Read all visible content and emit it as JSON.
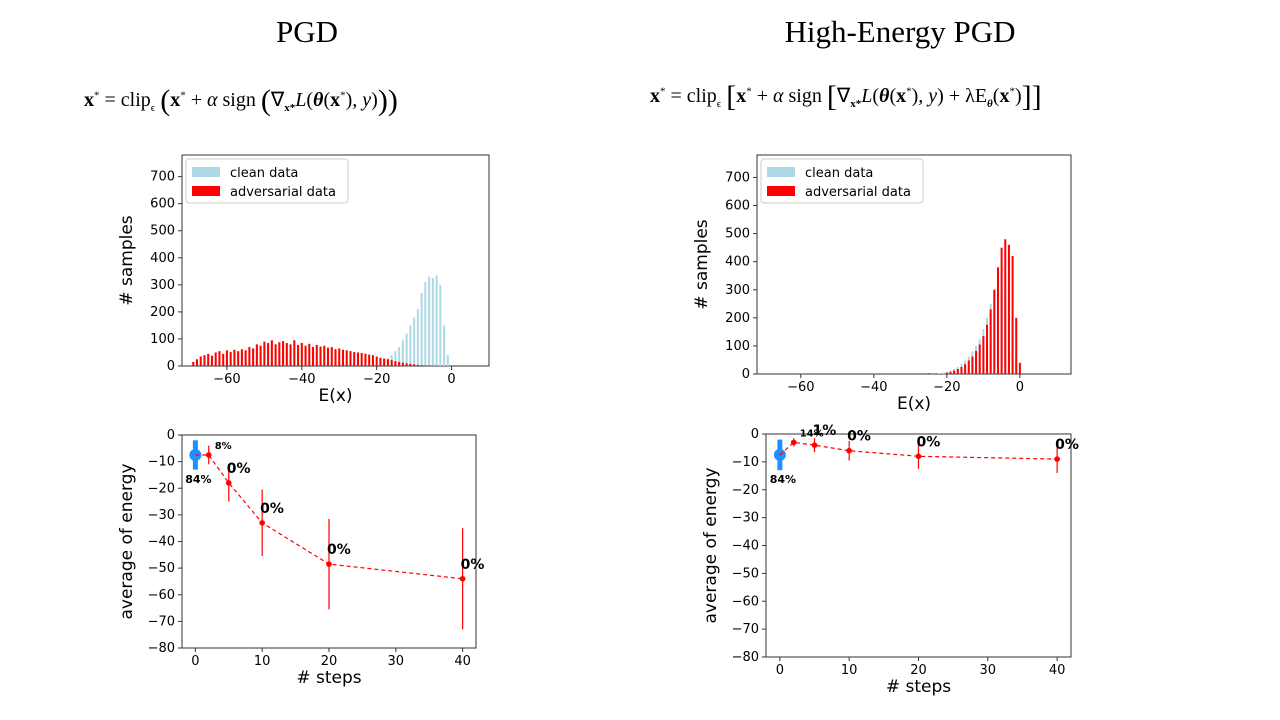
{
  "columns": [
    {
      "title": "PGD",
      "formula": "x* = clip_ϵ (x* + α sign( ∇x* L(θ(x*), y) ))"
    },
    {
      "title": "High-Energy PGD",
      "formula": "x* = clip_ϵ [x* + α sign[∇x* L(θ(x*), y) + λEθ(x*)]]"
    }
  ],
  "formula_parts": {
    "x": "x",
    "star": "*",
    "eq": " = clip",
    "eps": "ϵ",
    "plus": " + ",
    "alpha": "α",
    "sign": " sign",
    "nabla": "∇",
    "L": "L",
    "theta": "θ",
    "comma_y": ", y",
    "lambda": " + λE"
  },
  "chart_data": [
    {
      "type": "bar",
      "panel": "pgd-histogram",
      "xlabel": "E(x)",
      "ylabel": "# samples",
      "xlim": [
        -72,
        10
      ],
      "ylim": [
        0,
        780
      ],
      "xticks": [
        -60,
        -40,
        -20,
        0
      ],
      "yticks": [
        0,
        100,
        200,
        300,
        400,
        500,
        600,
        700
      ],
      "legend": "top-left",
      "series": [
        {
          "name": "clean data",
          "color": "#add8e6",
          "x": [
            -20,
            -19,
            -18,
            -17,
            -16,
            -15,
            -14,
            -13,
            -12,
            -11,
            -10,
            -9,
            -8,
            -7,
            -6,
            -5,
            -4,
            -3,
            -2,
            -1
          ],
          "values": [
            8,
            12,
            18,
            28,
            40,
            55,
            70,
            95,
            120,
            150,
            180,
            210,
            270,
            310,
            330,
            325,
            335,
            300,
            150,
            40
          ]
        },
        {
          "name": "adversarial data",
          "color": "#ff0000",
          "x": [
            -69,
            -68,
            -67,
            -66,
            -65,
            -64,
            -63,
            -62,
            -61,
            -60,
            -59,
            -58,
            -57,
            -56,
            -55,
            -54,
            -53,
            -52,
            -51,
            -50,
            -49,
            -48,
            -47,
            -46,
            -45,
            -44,
            -43,
            -42,
            -41,
            -40,
            -39,
            -38,
            -37,
            -36,
            -35,
            -34,
            -33,
            -32,
            -31,
            -30,
            -29,
            -28,
            -27,
            -26,
            -25,
            -24,
            -23,
            -22,
            -21,
            -20,
            -19,
            -18,
            -17,
            -16,
            -15,
            -14,
            -13,
            -12,
            -11,
            -10,
            -9,
            -8,
            -7,
            -6,
            -5,
            -4
          ],
          "values": [
            15,
            25,
            35,
            40,
            45,
            38,
            50,
            55,
            45,
            58,
            52,
            60,
            55,
            62,
            58,
            70,
            65,
            80,
            75,
            90,
            85,
            95,
            80,
            88,
            92,
            85,
            80,
            95,
            78,
            85,
            75,
            82,
            70,
            78,
            72,
            75,
            68,
            70,
            62,
            65,
            60,
            58,
            55,
            52,
            50,
            48,
            45,
            42,
            40,
            35,
            30,
            28,
            25,
            22,
            18,
            15,
            12,
            10,
            8,
            6,
            4,
            3,
            2,
            2,
            1,
            1
          ]
        }
      ]
    },
    {
      "type": "bar",
      "panel": "he-pgd-histogram",
      "xlabel": "E(x)",
      "ylabel": "# samples",
      "xlim": [
        -72,
        14
      ],
      "ylim": [
        0,
        780
      ],
      "xticks": [
        -60,
        -40,
        -20,
        0
      ],
      "yticks": [
        0,
        100,
        200,
        300,
        400,
        500,
        600,
        700
      ],
      "legend": "top-left",
      "series": [
        {
          "name": "clean data",
          "color": "#add8e6",
          "x": [
            -22,
            -21,
            -20,
            -19,
            -18,
            -17,
            -16,
            -15,
            -14,
            -13,
            -12,
            -11,
            -10,
            -9,
            -8,
            -7,
            -6,
            -5,
            -4,
            -3,
            -2,
            -1,
            0
          ],
          "values": [
            3,
            5,
            8,
            12,
            18,
            25,
            35,
            48,
            62,
            80,
            100,
            125,
            160,
            200,
            250,
            300,
            330,
            350,
            300,
            230,
            140,
            60,
            15
          ]
        },
        {
          "name": "adversarial data",
          "color": "#ff0000",
          "x": [
            -69,
            -60,
            -50,
            -40,
            -30,
            -25,
            -20,
            -19,
            -18,
            -17,
            -16,
            -15,
            -14,
            -13,
            -12,
            -11,
            -10,
            -9,
            -8,
            -7,
            -6,
            -5,
            -4,
            -3,
            -2,
            -1,
            0
          ],
          "values": [
            1,
            1,
            1,
            1,
            2,
            3,
            5,
            8,
            12,
            18,
            25,
            35,
            48,
            62,
            82,
            105,
            135,
            175,
            230,
            300,
            380,
            450,
            480,
            460,
            420,
            200,
            40
          ]
        }
      ]
    },
    {
      "type": "line",
      "panel": "pgd-energy",
      "xlabel": "# steps",
      "ylabel": "average of energy",
      "xlim": [
        -2,
        42
      ],
      "ylim": [
        -80,
        0
      ],
      "xticks": [
        0,
        10,
        20,
        30,
        40
      ],
      "yticks": [
        0,
        -10,
        -20,
        -30,
        -40,
        -50,
        -60,
        -70,
        -80
      ],
      "clean_point": {
        "x": 0,
        "y": -7.5,
        "err": 5.5,
        "label": "84%"
      },
      "series": [
        {
          "name": "",
          "color": "#ff0000",
          "x": [
            2,
            5,
            10,
            20,
            40
          ],
          "values": [
            -7.5,
            -18,
            -33,
            -48.5,
            -54
          ],
          "err": [
            3.5,
            7,
            12.5,
            17,
            19
          ],
          "labels": [
            "8%",
            "0%",
            "0%",
            "0%",
            "0%"
          ]
        }
      ]
    },
    {
      "type": "line",
      "panel": "he-pgd-energy",
      "xlabel": "# steps",
      "ylabel": "average of energy",
      "xlim": [
        -2,
        42
      ],
      "ylim": [
        -80,
        0
      ],
      "xticks": [
        0,
        10,
        20,
        30,
        40
      ],
      "yticks": [
        0,
        -10,
        -20,
        -30,
        -40,
        -50,
        -60,
        -70,
        -80
      ],
      "clean_point": {
        "x": 0,
        "y": -7.5,
        "err": 5.5,
        "label": "84%"
      },
      "series": [
        {
          "name": "",
          "color": "#ff0000",
          "x": [
            2,
            5,
            10,
            20,
            40
          ],
          "values": [
            -3,
            -4,
            -6,
            -8,
            -9
          ],
          "err": [
            1.5,
            2.5,
            3.5,
            4.5,
            5
          ],
          "labels": [
            "14%",
            "1%",
            "0%",
            "0%",
            "0%"
          ]
        }
      ]
    }
  ]
}
